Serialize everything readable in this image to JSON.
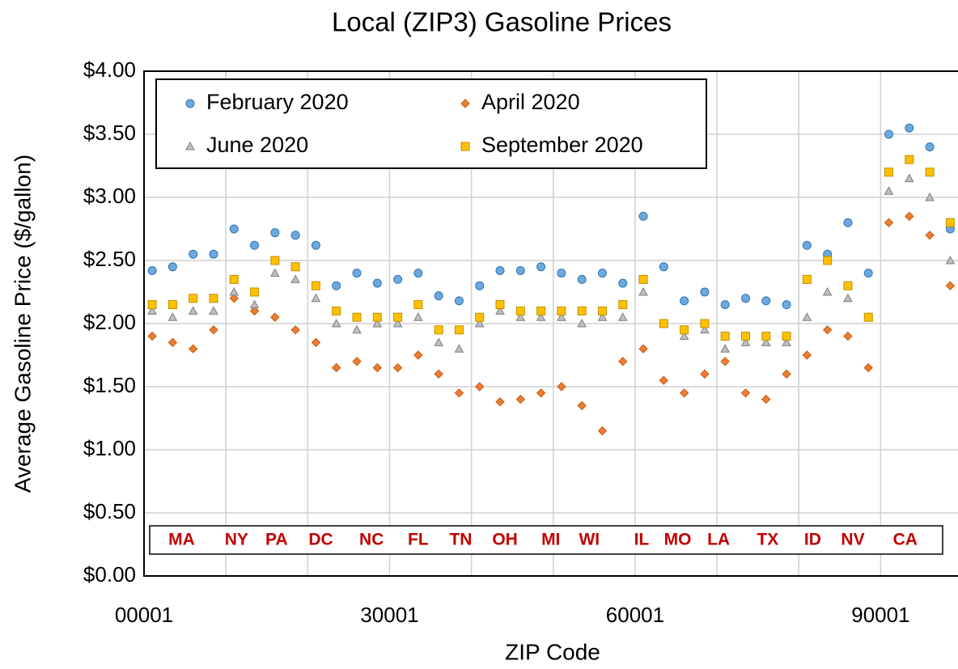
{
  "chart_data": {
    "type": "scatter",
    "title": "Local (ZIP3) Gasoline Prices",
    "xlabel": "ZIP Code",
    "ylabel": "Average Gasoline Price ($/gallon)",
    "xlim": [
      1,
      99451
    ],
    "ylim": [
      0,
      4
    ],
    "xticks": [
      {
        "value": 1,
        "label": "00001"
      },
      30001,
      60001,
      90001
    ],
    "xgrid": [
      10001,
      20001,
      30001,
      40001,
      50001,
      60001,
      70001,
      80001,
      90001
    ],
    "yticks": [
      {
        "value": 0,
        "label": "$0.00"
      },
      {
        "value": 0.5,
        "label": "$0.50"
      },
      {
        "value": 1,
        "label": "$1.00"
      },
      {
        "value": 1.5,
        "label": "$1.50"
      },
      {
        "value": 2,
        "label": "$2.00"
      },
      {
        "value": 2.5,
        "label": "$2.50"
      },
      {
        "value": 3,
        "label": "$3.00"
      },
      {
        "value": 3.5,
        "label": "$3.50"
      },
      {
        "value": 4,
        "label": "$4.00"
      }
    ],
    "grid": true,
    "legend": "top-left",
    "region_labels": [
      {
        "label": "MA",
        "x": 4600
      },
      {
        "label": "NY",
        "x": 11300
      },
      {
        "label": "PA",
        "x": 16200
      },
      {
        "label": "DC",
        "x": 21600
      },
      {
        "label": "NC",
        "x": 27800
      },
      {
        "label": "FL",
        "x": 33500
      },
      {
        "label": "TN",
        "x": 38700
      },
      {
        "label": "OH",
        "x": 44100
      },
      {
        "label": "MI",
        "x": 49700
      },
      {
        "label": "WI",
        "x": 54400
      },
      {
        "label": "IL",
        "x": 60800
      },
      {
        "label": "MO",
        "x": 65200
      },
      {
        "label": "LA",
        "x": 70200
      },
      {
        "label": "TX",
        "x": 76200
      },
      {
        "label": "ID",
        "x": 81700
      },
      {
        "label": "NV",
        "x": 86600
      },
      {
        "label": "CA",
        "x": 93000
      }
    ],
    "x": [
      1000,
      3500,
      6000,
      8500,
      11000,
      13500,
      16000,
      18500,
      21000,
      23500,
      26000,
      28500,
      31000,
      33500,
      36000,
      38500,
      41000,
      43500,
      46000,
      48500,
      51000,
      53500,
      56000,
      58500,
      61000,
      63500,
      66000,
      68500,
      71000,
      73500,
      76000,
      78500,
      81000,
      83500,
      86000,
      88500,
      91000,
      93500,
      96000,
      98500
    ],
    "series": [
      {
        "name": "February 2020",
        "color": "#6fa8dc",
        "stroke": "#2e75b6",
        "marker": "circle",
        "values": [
          2.42,
          2.45,
          2.55,
          2.55,
          2.75,
          2.62,
          2.72,
          2.7,
          2.62,
          2.3,
          2.4,
          2.32,
          2.35,
          2.4,
          2.22,
          2.18,
          2.3,
          2.42,
          2.42,
          2.45,
          2.4,
          2.35,
          2.4,
          2.32,
          2.85,
          2.45,
          2.18,
          2.25,
          2.15,
          2.2,
          2.18,
          2.15,
          2.62,
          2.55,
          2.8,
          2.4,
          3.5,
          3.55,
          3.4,
          2.75
        ]
      },
      {
        "name": "April 2020",
        "color": "#ed7d31",
        "stroke": "#c55a11",
        "marker": "diamond",
        "values": [
          1.9,
          1.85,
          1.8,
          1.95,
          2.2,
          2.1,
          2.05,
          1.95,
          1.85,
          1.65,
          1.7,
          1.65,
          1.65,
          1.75,
          1.6,
          1.45,
          1.5,
          1.38,
          1.4,
          1.45,
          1.5,
          1.35,
          1.15,
          1.7,
          1.8,
          1.55,
          1.45,
          1.6,
          1.7,
          1.45,
          1.4,
          1.6,
          1.75,
          1.95,
          1.9,
          1.65,
          2.8,
          2.85,
          2.7,
          2.3
        ]
      },
      {
        "name": "June 2020",
        "color": "#bfbfbf",
        "stroke": "#7f7f7f",
        "marker": "triangle",
        "values": [
          2.1,
          2.05,
          2.1,
          2.1,
          2.25,
          2.15,
          2.4,
          2.35,
          2.2,
          2.0,
          1.95,
          2.0,
          2.0,
          2.05,
          1.85,
          1.8,
          2.0,
          2.1,
          2.05,
          2.05,
          2.05,
          2.0,
          2.05,
          2.05,
          2.25,
          2.0,
          1.9,
          1.95,
          1.8,
          1.85,
          1.85,
          1.85,
          2.05,
          2.25,
          2.2,
          2.05,
          3.05,
          3.15,
          3.0,
          2.5
        ]
      },
      {
        "name": "September 2020",
        "color": "#ffc000",
        "stroke": "#bf9000",
        "marker": "square",
        "values": [
          2.15,
          2.15,
          2.2,
          2.2,
          2.35,
          2.25,
          2.5,
          2.45,
          2.3,
          2.1,
          2.05,
          2.05,
          2.05,
          2.15,
          1.95,
          1.95,
          2.05,
          2.15,
          2.1,
          2.1,
          2.1,
          2.1,
          2.1,
          2.15,
          2.35,
          2.0,
          1.95,
          2.0,
          1.9,
          1.9,
          1.9,
          1.9,
          2.35,
          2.5,
          2.3,
          2.05,
          3.2,
          3.3,
          3.2,
          2.8
        ]
      }
    ]
  }
}
